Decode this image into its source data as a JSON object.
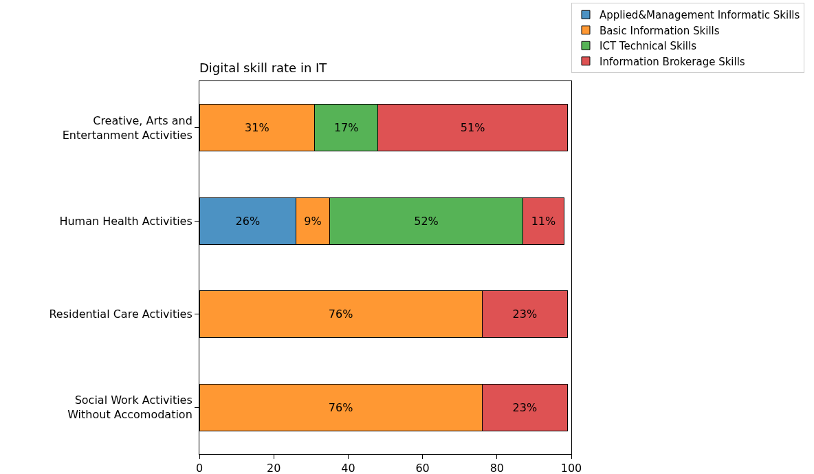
{
  "chart_data": {
    "type": "bar",
    "title": "Digital skill rate in IT",
    "orientation": "horizontal",
    "stacked": true,
    "categories": [
      "Creative, Arts and\nEntertanment Activities",
      "Human Health Activities",
      "Residential Care Activities",
      "Social Work Activities\nWithout Accomodation"
    ],
    "series": [
      {
        "name": "Applied&Management Informatic Skills",
        "color": "#4c92c3",
        "values": [
          null,
          26,
          null,
          null
        ],
        "value_labels": [
          null,
          "26%",
          null,
          null
        ]
      },
      {
        "name": "Basic Information Skills",
        "color": "#ff9833",
        "values": [
          31,
          9,
          76,
          76
        ],
        "value_labels": [
          "31%",
          "9%",
          "76%",
          "76%"
        ]
      },
      {
        "name": "ICT Technical Skills",
        "color": "#56b356",
        "values": [
          17,
          52,
          null,
          null
        ],
        "value_labels": [
          "17%",
          "52%",
          null,
          null
        ]
      },
      {
        "name": "Information Brokerage Skills",
        "color": "#de5253",
        "values": [
          51,
          11,
          23,
          23
        ],
        "value_labels": [
          "51%",
          "11%",
          "23%",
          "23%"
        ]
      }
    ],
    "xlim": [
      0,
      100
    ],
    "xticks": [
      0,
      20,
      40,
      60,
      80,
      100
    ],
    "grid": false,
    "legend": "top right"
  }
}
